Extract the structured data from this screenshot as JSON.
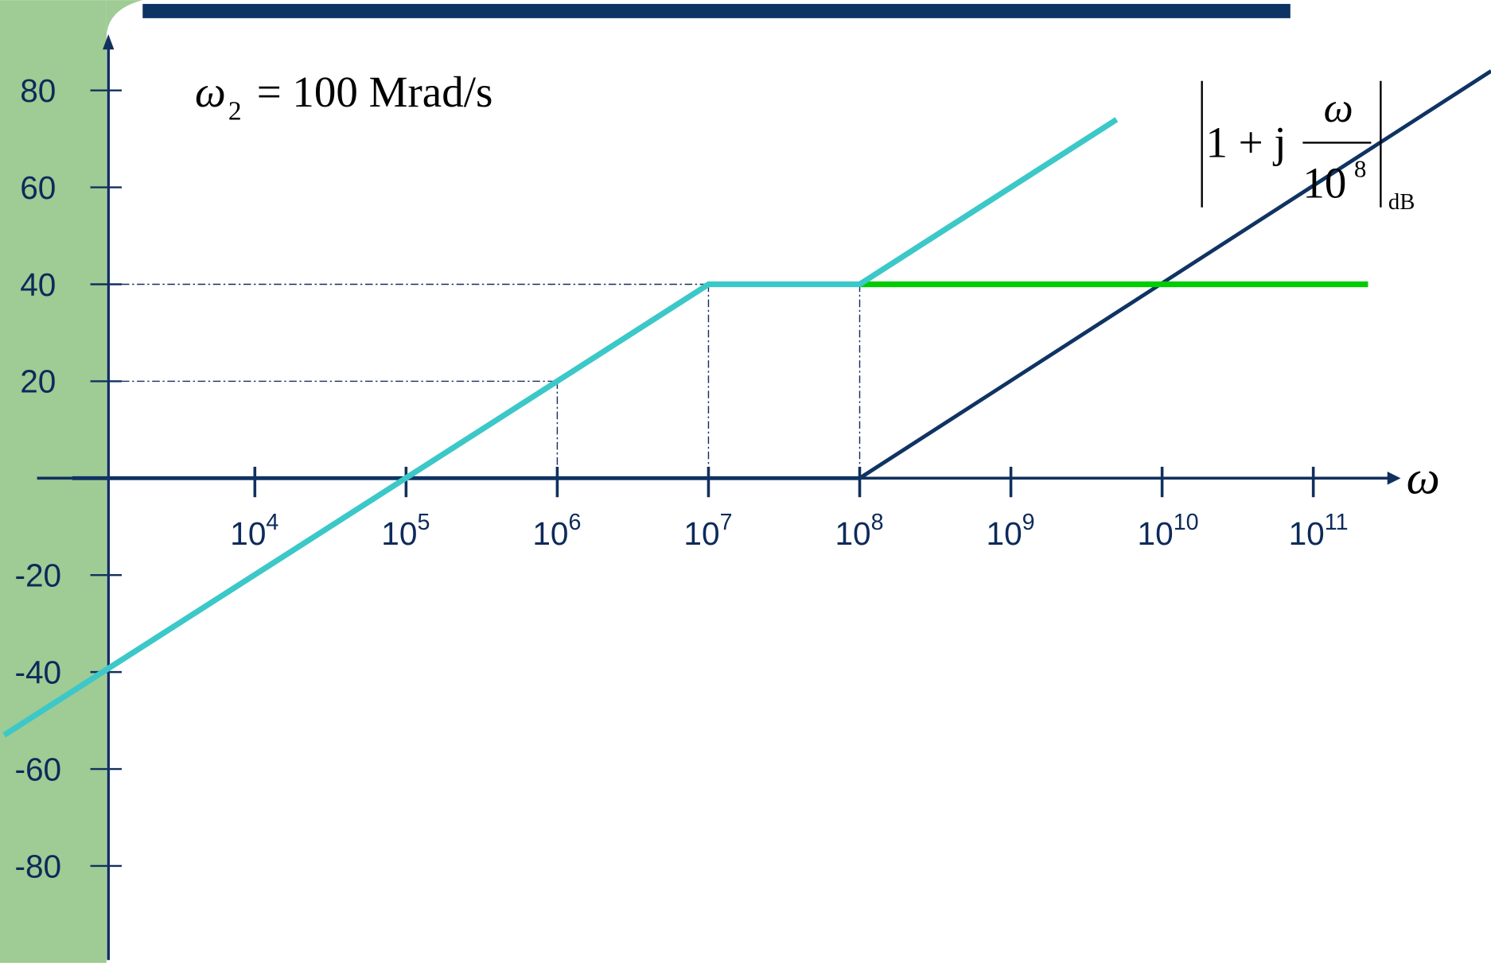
{
  "chart_data": {
    "type": "line",
    "x_scale": "log",
    "xlabel": "ω",
    "xlim": [
      1000,
      300000000000
    ],
    "ylim": [
      -100,
      90
    ],
    "xticks": [
      {
        "value": 10000,
        "label": "10",
        "sup": "4"
      },
      {
        "value": 100000,
        "label": "10",
        "sup": "5"
      },
      {
        "value": 1000000,
        "label": "10",
        "sup": "6"
      },
      {
        "value": 10000000,
        "label": "10",
        "sup": "7"
      },
      {
        "value": 100000000,
        "label": "10",
        "sup": "8"
      },
      {
        "value": 1000000000,
        "label": "10",
        "sup": "9"
      },
      {
        "value": 10000000000,
        "label": "10",
        "sup": "10"
      },
      {
        "value": 100000000000,
        "label": "10",
        "sup": "11"
      }
    ],
    "yticks": [
      80,
      60,
      40,
      20,
      -20,
      -40,
      -60,
      -80
    ],
    "series": [
      {
        "color": "#0f3363",
        "x": [
          620,
          100000000,
          1500000000000
        ],
        "values": [
          0,
          0,
          84
        ]
      },
      {
        "color": "#00cc00",
        "x": [
          100000000,
          230000000000
        ],
        "values": [
          40,
          40
        ]
      },
      {
        "color": "#3cc8c8",
        "x": [
          220,
          1000000,
          10000000,
          100000000,
          5000000000
        ],
        "values": [
          -53,
          20,
          40,
          40,
          74
        ]
      }
    ],
    "annotations": {
      "corner": {
        "symbol": "ω",
        "sub": "2",
        "text": "= 100 Mrad/s"
      },
      "formula": {
        "lead": "1 + j",
        "numerator": "ω",
        "denominator": "10",
        "exponent": "8",
        "unit": "dB"
      }
    }
  }
}
